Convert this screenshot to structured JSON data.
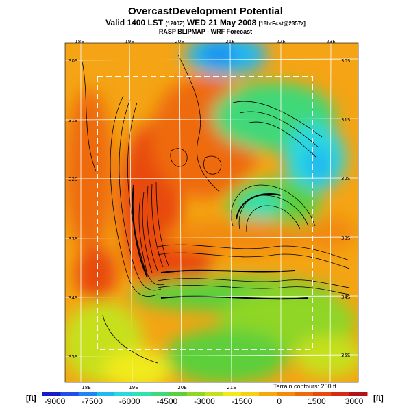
{
  "header": {
    "title": "OvercastDevelopment Potential",
    "subtitle_main": "Valid  1400 LST",
    "subtitle_paren": "(1200Z)",
    "subtitle_date": "WED 21 May 2008",
    "subtitle_forecast": "[18hrFcst@2357z]",
    "source_line": "RASP BLIPMAP - WRF Forecast"
  },
  "map": {
    "lon_labels_top": [
      "18E",
      "19E",
      "20E",
      "21E",
      "22E",
      "23E"
    ],
    "lon_labels_bottom": [
      "18E",
      "19E",
      "20E",
      "21E"
    ],
    "lat_labels_left": [
      "30S",
      "31S",
      "32S",
      "33S",
      "34S",
      "35S"
    ],
    "lat_labels_right": [
      "30S",
      "31S",
      "32S",
      "33S",
      "34S",
      "35S"
    ],
    "contour_note": "Terrain contours: 250 ft"
  },
  "colorbar": {
    "unit_left": "[ft]",
    "unit_right": "[ft]",
    "tick_labels": [
      "-9000",
      "-7500",
      "-6000",
      "-4500",
      "-3000",
      "-1500",
      "0",
      "1500",
      "3000"
    ],
    "colors": [
      "#1a1acd",
      "#1f4fe6",
      "#1e86f2",
      "#22b8f0",
      "#2bd8e0",
      "#33e0b0",
      "#40d878",
      "#5ccf3a",
      "#8fd626",
      "#c6e01e",
      "#f0ea1c",
      "#f7cf14",
      "#f6a90f",
      "#f28a0c",
      "#ee6a0c",
      "#e84a0e",
      "#d62a12",
      "#b3121a"
    ]
  }
}
